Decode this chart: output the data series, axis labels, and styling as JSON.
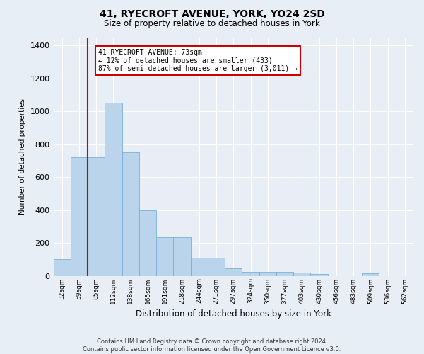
{
  "title": "41, RYECROFT AVENUE, YORK, YO24 2SD",
  "subtitle": "Size of property relative to detached houses in York",
  "xlabel": "Distribution of detached houses by size in York",
  "ylabel": "Number of detached properties",
  "footer_line1": "Contains HM Land Registry data © Crown copyright and database right 2024.",
  "footer_line2": "Contains public sector information licensed under the Open Government Licence v3.0.",
  "annotation_line1": "41 RYECROFT AVENUE: 73sqm",
  "annotation_line2": "← 12% of detached houses are smaller (433)",
  "annotation_line3": "87% of semi-detached houses are larger (3,011) →",
  "bar_labels": [
    "32sqm",
    "59sqm",
    "85sqm",
    "112sqm",
    "138sqm",
    "165sqm",
    "191sqm",
    "218sqm",
    "244sqm",
    "271sqm",
    "297sqm",
    "324sqm",
    "350sqm",
    "377sqm",
    "403sqm",
    "430sqm",
    "456sqm",
    "483sqm",
    "509sqm",
    "536sqm",
    "562sqm"
  ],
  "bar_values": [
    100,
    720,
    720,
    1050,
    750,
    400,
    235,
    235,
    110,
    110,
    45,
    25,
    25,
    25,
    20,
    10,
    0,
    0,
    15,
    0,
    0
  ],
  "bar_color": "#bad4eb",
  "bar_edge_color": "#7aafd4",
  "property_line_x": 1.5,
  "ylim": [
    0,
    1450
  ],
  "yticks": [
    0,
    200,
    400,
    600,
    800,
    1000,
    1200,
    1400
  ],
  "background_color": "#e8eef5",
  "plot_bg_color": "#e8eef5",
  "annotation_box_color": "#ffffff",
  "annotation_box_edge": "#cc0000",
  "vline_color": "#cc0000",
  "grid_color": "#ffffff"
}
